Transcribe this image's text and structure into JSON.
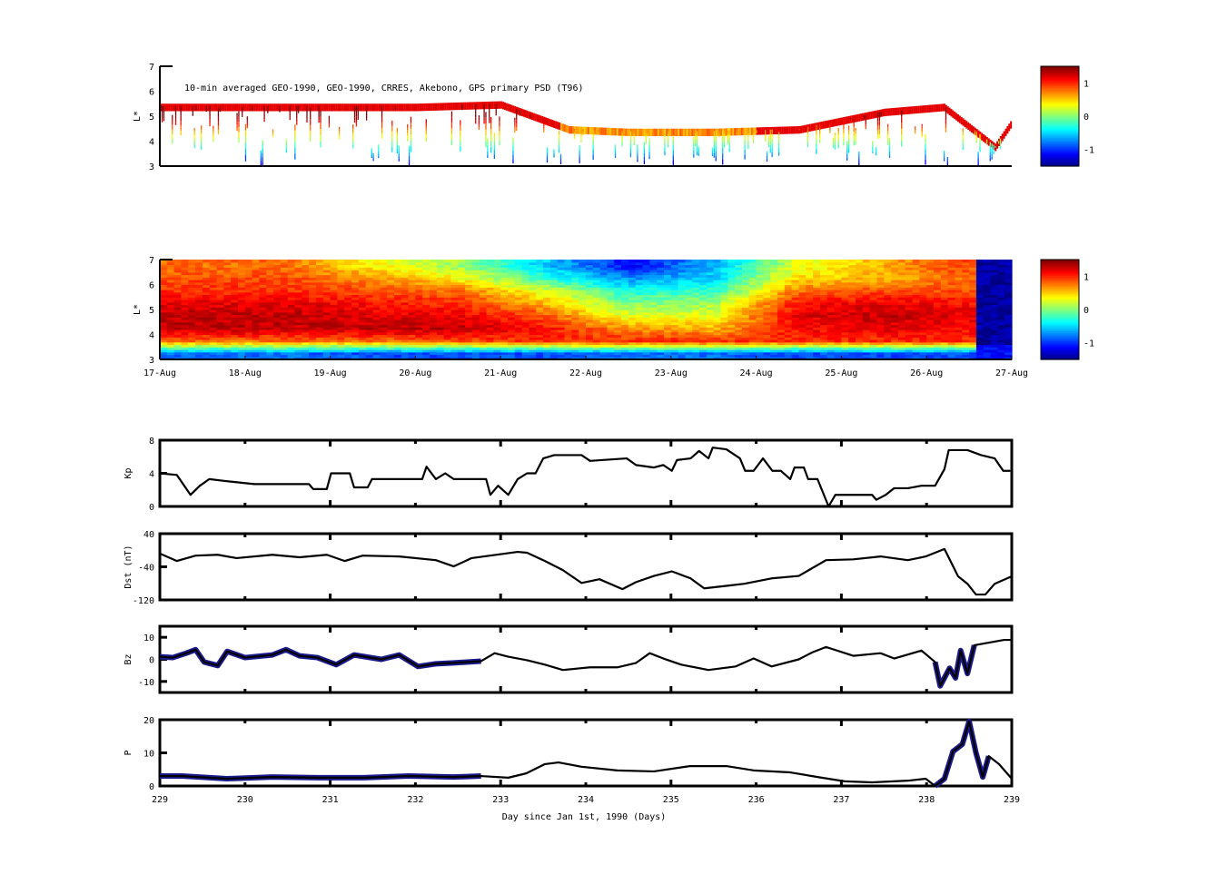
{
  "chart_data": [
    {
      "type": "heatmap",
      "id": "psd_sparse",
      "title": "10-min averaged GEO-1990, GEO-1990, CRRES, Akebono, GPS  primary PSD (T96)",
      "ylabel": "L*",
      "ylim": [
        3,
        7
      ],
      "yticks": [
        "3",
        "4",
        "5",
        "6",
        "7"
      ],
      "xlim": [
        229,
        239
      ],
      "colorbar": {
        "range": [
          -1.5,
          1.5
        ],
        "ticks": [
          "1",
          "0",
          "-1"
        ]
      },
      "outer_L_boundary": {
        "x": [
          229,
          230,
          231,
          232,
          233,
          233.8,
          234.5,
          235.5,
          236.5,
          237.5,
          238.2,
          238.8,
          239
        ],
        "L": [
          5.4,
          5.4,
          5.4,
          5.4,
          5.5,
          4.5,
          4.4,
          4.4,
          4.5,
          5.2,
          5.4,
          3.8,
          4.8
        ]
      }
    },
    {
      "type": "heatmap",
      "id": "psd_reanalysis",
      "ylabel": "L*",
      "ylim": [
        3,
        7
      ],
      "yticks": [
        "3",
        "4",
        "5",
        "6",
        "7"
      ],
      "xlim": [
        229,
        239
      ],
      "xticklabels": [
        "17-Aug",
        "18-Aug",
        "19-Aug",
        "20-Aug",
        "21-Aug",
        "22-Aug",
        "23-Aug",
        "24-Aug",
        "25-Aug",
        "26-Aug",
        "27-Aug"
      ],
      "colorbar": {
        "range": [
          -1.5,
          1.5
        ],
        "ticks": [
          "1",
          "0",
          "-1"
        ]
      },
      "L_bins": [
        3.25,
        3.75,
        4.25,
        4.75,
        5.25,
        5.75,
        6.25,
        6.75
      ],
      "days": [
        229.5,
        230.5,
        231.5,
        232.5,
        233.5,
        234.5,
        235.5,
        236.5,
        237.5,
        238.3
      ],
      "values": [
        [
          -0.8,
          0.8,
          1.3,
          1.3,
          1.2,
          1.0,
          0.9,
          0.8
        ],
        [
          -0.8,
          0.8,
          1.3,
          1.3,
          1.2,
          1.0,
          0.9,
          0.8
        ],
        [
          -0.9,
          0.8,
          1.3,
          1.2,
          1.1,
          0.9,
          0.7,
          0.4
        ],
        [
          -0.9,
          0.9,
          1.3,
          1.2,
          1.0,
          0.8,
          0.4,
          0.1
        ],
        [
          -0.9,
          1.0,
          1.1,
          0.9,
          0.6,
          0.3,
          -0.2,
          -0.5
        ],
        [
          -0.8,
          1.0,
          0.7,
          0.3,
          0.0,
          -0.3,
          -0.7,
          -1.1
        ],
        [
          -0.8,
          1.0,
          0.6,
          0.3,
          0.1,
          -0.2,
          -0.5,
          -0.6
        ],
        [
          -0.9,
          1.0,
          1.1,
          1.2,
          1.1,
          0.8,
          0.5,
          0.3
        ],
        [
          -0.9,
          1.0,
          1.2,
          1.3,
          1.2,
          0.9,
          0.6,
          0.6
        ],
        [
          -0.9,
          1.0,
          1.1,
          1.2,
          1.1,
          0.9,
          0.8,
          0.9
        ]
      ],
      "dropout_after_day": 238.55,
      "dropout_value": -1.4
    },
    {
      "type": "line",
      "id": "kp",
      "ylabel": "Kp",
      "ylim": [
        0,
        8
      ],
      "yticks": [
        "0",
        "4",
        "8"
      ],
      "x": [
        229.0,
        229.2,
        229.36,
        229.47,
        229.58,
        229.74,
        230.11,
        230.75,
        230.8,
        230.96,
        231.01,
        231.23,
        231.28,
        231.44,
        231.49,
        232.08,
        232.13,
        232.24,
        232.35,
        232.45,
        232.83,
        232.88,
        232.97,
        233.09,
        233.2,
        233.31,
        233.41,
        233.5,
        233.63,
        233.95,
        234.05,
        234.48,
        234.59,
        234.8,
        234.91,
        235.01,
        235.07,
        235.23,
        235.33,
        235.44,
        235.49,
        235.65,
        235.81,
        235.87,
        235.97,
        236.08,
        236.19,
        236.29,
        236.4,
        236.45,
        236.56,
        236.61,
        236.72,
        236.85,
        236.93,
        237.36,
        237.41,
        237.52,
        237.62,
        237.78,
        237.94,
        238.1,
        238.21,
        238.26,
        238.48,
        238.64,
        238.8,
        238.9,
        238.98
      ],
      "y": [
        4.0,
        3.8,
        1.4,
        2.5,
        3.3,
        3.1,
        2.7,
        2.7,
        2.1,
        2.1,
        4.0,
        4.0,
        2.3,
        2.3,
        3.3,
        3.3,
        4.8,
        3.3,
        4.0,
        3.3,
        3.3,
        1.4,
        2.5,
        1.4,
        3.3,
        4.0,
        4.0,
        5.8,
        6.2,
        6.2,
        5.5,
        5.8,
        5.0,
        4.7,
        5.0,
        4.3,
        5.6,
        5.8,
        6.7,
        5.8,
        7.1,
        6.9,
        5.8,
        4.3,
        4.3,
        5.8,
        4.3,
        4.3,
        3.3,
        4.7,
        4.7,
        3.3,
        3.3,
        0.0,
        1.4,
        1.4,
        0.8,
        1.4,
        2.2,
        2.2,
        2.5,
        2.5,
        4.5,
        6.8,
        6.8,
        6.2,
        5.8,
        4.3,
        4.3
      ]
    },
    {
      "type": "line",
      "id": "dst",
      "ylabel": "Dst (nT)",
      "ylim": [
        -120,
        40
      ],
      "yticks": [
        "-120",
        "-40",
        "40"
      ],
      "x": [
        229.0,
        229.2,
        229.42,
        229.68,
        229.9,
        230.32,
        230.64,
        230.96,
        231.17,
        231.38,
        231.81,
        232.24,
        232.45,
        232.66,
        233.2,
        233.31,
        233.52,
        233.73,
        233.95,
        234.16,
        234.43,
        234.59,
        234.8,
        235.01,
        235.23,
        235.39,
        235.65,
        235.86,
        236.18,
        236.5,
        236.82,
        237.14,
        237.46,
        237.78,
        237.99,
        238.21,
        238.37,
        238.48,
        238.58,
        238.69,
        238.8,
        239.0
      ],
      "y": [
        -8,
        -26,
        -13,
        -11,
        -19,
        -11,
        -17,
        -11,
        -26,
        -13,
        -15,
        -24,
        -39,
        -19,
        -4,
        -6,
        -26,
        -48,
        -79,
        -70,
        -94,
        -77,
        -62,
        -51,
        -68,
        -92,
        -86,
        -81,
        -68,
        -62,
        -24,
        -22,
        -15,
        -24,
        -15,
        3,
        -63,
        -81,
        -107,
        -107,
        -81,
        -63
      ]
    },
    {
      "type": "line",
      "id": "bz",
      "ylabel": "Bz",
      "ylim": [
        -15,
        15
      ],
      "yticks": [
        "-10",
        "0",
        "10"
      ],
      "x": [
        229.0,
        229.15,
        229.31,
        229.42,
        229.52,
        229.68,
        229.79,
        230.0,
        230.32,
        230.48,
        230.64,
        230.85,
        231.07,
        231.28,
        231.6,
        231.81,
        232.03,
        232.24,
        232.45,
        232.77,
        232.93,
        233.09,
        233.31,
        233.52,
        233.73,
        234.05,
        234.37,
        234.59,
        234.75,
        234.91,
        235.12,
        235.44,
        235.76,
        235.97,
        236.18,
        236.5,
        236.66,
        236.82,
        237.14,
        237.46,
        237.62,
        237.94,
        238.1,
        238.16,
        238.27,
        238.34,
        238.4,
        238.48,
        238.56,
        238.91,
        239.0
      ],
      "y": [
        1.2,
        0.8,
        2.8,
        4.4,
        -1.2,
        -2.8,
        3.6,
        0.8,
        2.0,
        4.4,
        1.6,
        0.8,
        -2.4,
        2.0,
        0.0,
        2.0,
        -3.2,
        -2.0,
        -1.6,
        -0.8,
        2.8,
        1.2,
        -0.4,
        -2.4,
        -4.8,
        -3.6,
        -3.6,
        -1.6,
        2.8,
        0.4,
        -2.4,
        -4.8,
        -3.2,
        0.4,
        -3.2,
        0.0,
        3.2,
        5.6,
        1.6,
        2.8,
        0.4,
        4.0,
        -1.2,
        -12.0,
        -4.0,
        -8.4,
        4.0,
        -6.4,
        6.4,
        8.8,
        8.8
      ],
      "blue_segments": [
        [
          229.0,
          232.8
        ],
        [
          238.1,
          238.8
        ]
      ]
    },
    {
      "type": "line",
      "id": "p",
      "ylabel": "P",
      "xlabel": "Day since Jan 1st, 1990 (Days)",
      "ylim": [
        0,
        20
      ],
      "yticks": [
        "0",
        "10",
        "20"
      ],
      "xticks": [
        "229",
        "230",
        "231",
        "232",
        "233",
        "234",
        "235",
        "236",
        "237",
        "238",
        "239"
      ],
      "x": [
        229.0,
        229.26,
        229.79,
        230.32,
        230.85,
        231.39,
        231.92,
        232.45,
        232.77,
        233.09,
        233.3,
        233.52,
        233.68,
        233.95,
        234.37,
        234.8,
        235.22,
        235.65,
        235.97,
        236.4,
        236.72,
        237.04,
        237.36,
        237.78,
        237.99,
        238.1,
        238.21,
        238.31,
        238.42,
        238.5,
        238.58,
        238.66,
        238.73,
        238.85,
        239.0
      ],
      "y": [
        3.0,
        3.0,
        2.2,
        2.7,
        2.5,
        2.5,
        3.0,
        2.7,
        3.0,
        2.5,
        3.8,
        6.6,
        7.1,
        5.8,
        4.7,
        4.4,
        6.0,
        6.0,
        4.7,
        4.1,
        2.7,
        1.4,
        1.1,
        1.6,
        2.2,
        0.0,
        2.2,
        10.4,
        12.6,
        19.5,
        10.0,
        2.7,
        9.0,
        6.6,
        2.2
      ],
      "blue_segments": [
        [
          229.0,
          232.8
        ],
        [
          238.1,
          238.8
        ]
      ]
    }
  ]
}
